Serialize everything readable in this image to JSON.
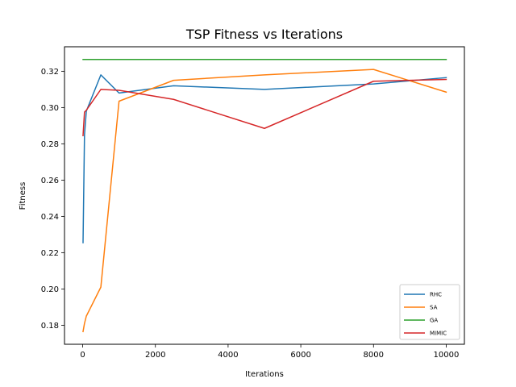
{
  "chart_data": {
    "type": "line",
    "title": "TSP Fitness vs Iterations",
    "xlabel": "Iterations",
    "ylabel": "Fitness",
    "xlim": [
      -500,
      10500
    ],
    "ylim": [
      0.1695,
      0.3335
    ],
    "xticks": [
      0,
      2000,
      4000,
      6000,
      8000,
      10000
    ],
    "xtick_labels": [
      "0",
      "2000",
      "4000",
      "6000",
      "8000",
      "10000"
    ],
    "yticks": [
      0.18,
      0.2,
      0.22,
      0.24,
      0.26,
      0.28,
      0.3,
      0.32
    ],
    "ytick_labels": [
      "0.18",
      "0.20",
      "0.22",
      "0.24",
      "0.26",
      "0.28",
      "0.30",
      "0.32"
    ],
    "grid": false,
    "legend_position": "bottom-right",
    "x": [
      10,
      50,
      100,
      500,
      1000,
      2500,
      5000,
      8000,
      10000
    ],
    "series": [
      {
        "name": "RHC",
        "color": "#1f77b4",
        "values": [
          0.2255,
          0.285,
          0.298,
          0.318,
          0.308,
          0.312,
          0.31,
          0.313,
          0.3165
        ]
      },
      {
        "name": "SA",
        "color": "#ff7f0e",
        "values": [
          0.1765,
          0.181,
          0.185,
          0.201,
          0.3035,
          0.315,
          0.318,
          0.321,
          0.3085
        ]
      },
      {
        "name": "GA",
        "color": "#2ca02c",
        "values": [
          0.3265,
          0.3265,
          0.3265,
          0.3265,
          0.3265,
          0.3265,
          0.3265,
          0.3265,
          0.3265
        ]
      },
      {
        "name": "MIMIC",
        "color": "#d62728",
        "values": [
          0.2845,
          0.2975,
          0.2985,
          0.31,
          0.3095,
          0.3045,
          0.2885,
          0.3145,
          0.3155
        ]
      }
    ]
  }
}
